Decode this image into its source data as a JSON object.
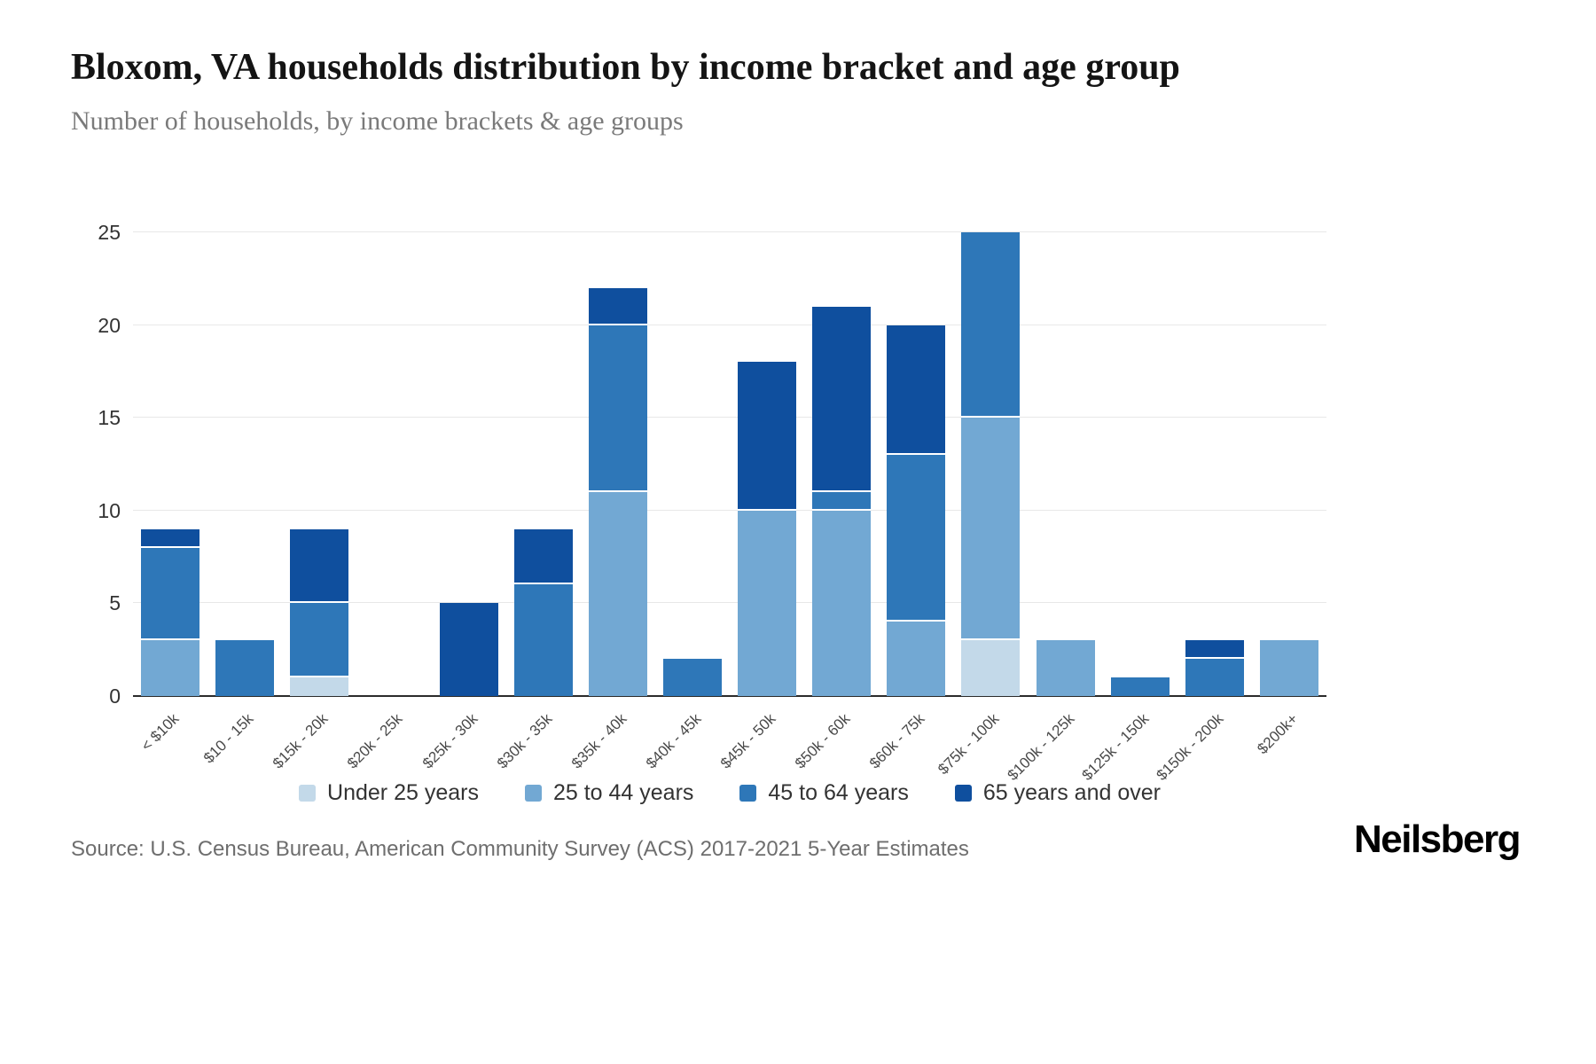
{
  "header": {
    "title": "Bloxom, VA households distribution by income bracket and age group",
    "subtitle": "Number of households, by income brackets & age groups"
  },
  "chart_data": {
    "type": "bar",
    "stacked": true,
    "title": "Bloxom, VA households distribution by income bracket and age group",
    "xlabel": "",
    "ylabel": "Number of households",
    "ylim": [
      0,
      25
    ],
    "yticks": [
      0,
      5,
      10,
      15,
      20,
      25
    ],
    "grid": "horizontal",
    "legend_position": "bottom",
    "categories": [
      "< $10k",
      "$10 - 15k",
      "$15k - 20k",
      "$20k - 25k",
      "$25k - 30k",
      "$30k - 35k",
      "$35k - 40k",
      "$40k - 45k",
      "$45k - 50k",
      "$50k - 60k",
      "$60k - 75k",
      "$75k - 100k",
      "$100k - 125k",
      "$125k - 150k",
      "$150k - 200k",
      "$200k+"
    ],
    "series": [
      {
        "name": "Under 25 years",
        "color": "#c3d9e9",
        "values": [
          0,
          0,
          1,
          0,
          0,
          0,
          0,
          0,
          0,
          0,
          0,
          3,
          0,
          0,
          0,
          0
        ]
      },
      {
        "name": "25 to 44 years",
        "color": "#72a8d3",
        "values": [
          3,
          0,
          0,
          0,
          0,
          0,
          11,
          0,
          10,
          10,
          4,
          12,
          3,
          0,
          0,
          3
        ]
      },
      {
        "name": "45 to 64 years",
        "color": "#2e77b8",
        "values": [
          5,
          3,
          4,
          0,
          0,
          6,
          9,
          2,
          0,
          1,
          9,
          10,
          0,
          1,
          2,
          0
        ]
      },
      {
        "name": "65 years and over",
        "color": "#0f4f9e",
        "values": [
          1,
          0,
          4,
          0,
          5,
          3,
          2,
          0,
          8,
          10,
          7,
          0,
          0,
          0,
          1,
          0
        ]
      }
    ]
  },
  "footer": {
    "source": "Source: U.S. Census Bureau, American Community Survey (ACS) 2017-2021 5-Year Estimates",
    "brand": "Neilsberg"
  }
}
